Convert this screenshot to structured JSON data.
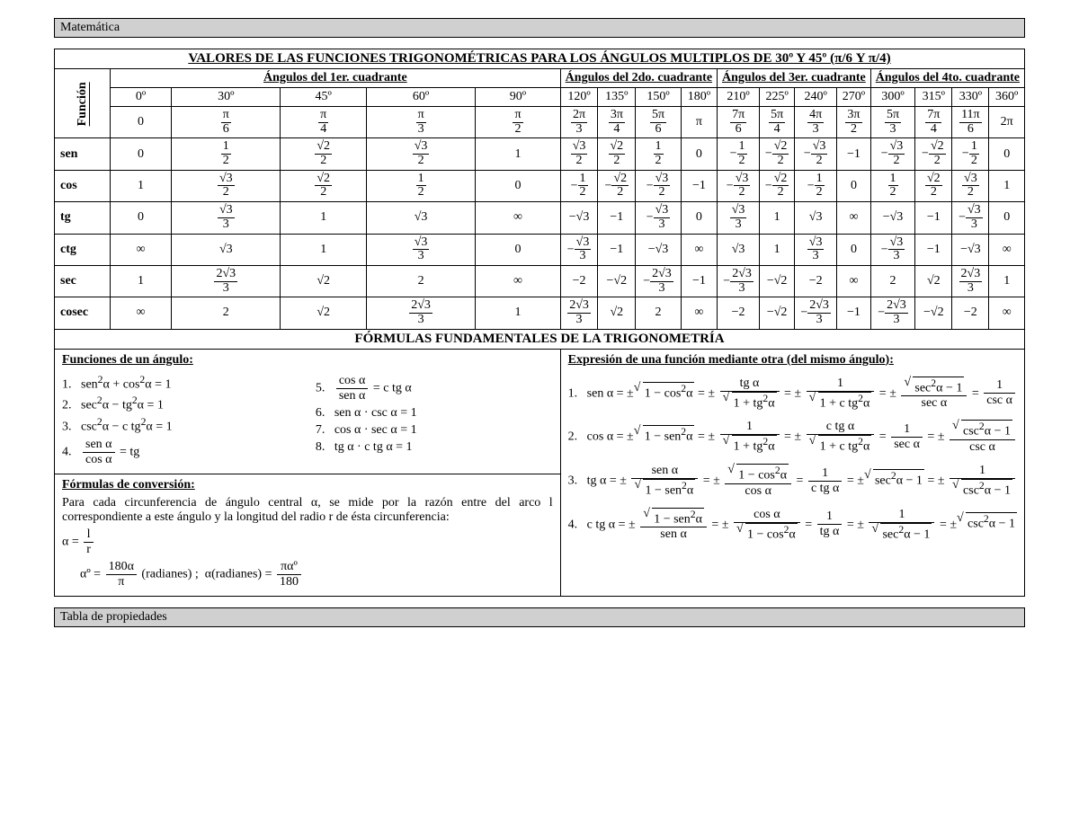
{
  "header": "Matemática",
  "footer": "Tabla de propiedades",
  "table_title": "VALORES DE LAS FUNCIONES TRIGONOMÉTRICAS PARA LOS ÁNGULOS MULTIPLOS DE 30º Y 45º (π/6 Y π/4)",
  "funcion_label": "Función",
  "quadrants": [
    "Ángulos del 1er. cuadrante",
    "Ángulos del 2do. cuadrante",
    "Ángulos del 3er. cuadrante",
    "Ángulos del 4to. cuadrante"
  ],
  "degrees": [
    "0º",
    "30º",
    "45º",
    "60º",
    "90º",
    "120º",
    "135º",
    "150º",
    "180º",
    "210º",
    "225º",
    "240º",
    "270º",
    "300º",
    "315º",
    "330º",
    "360º"
  ],
  "radians_html": [
    "0",
    "<span class='frac'><span class='num'>π</span><span class='den'>6</span></span>",
    "<span class='frac'><span class='num'>π</span><span class='den'>4</span></span>",
    "<span class='frac'><span class='num'>π</span><span class='den'>3</span></span>",
    "<span class='frac'><span class='num'>π</span><span class='den'>2</span></span>",
    "<span class='frac'><span class='num'>2π</span><span class='den'>3</span></span>",
    "<span class='frac'><span class='num'>3π</span><span class='den'>4</span></span>",
    "<span class='frac'><span class='num'>5π</span><span class='den'>6</span></span>",
    "π",
    "<span class='frac'><span class='num'>7π</span><span class='den'>6</span></span>",
    "<span class='frac'><span class='num'>5π</span><span class='den'>4</span></span>",
    "<span class='frac'><span class='num'>4π</span><span class='den'>3</span></span>",
    "<span class='frac'><span class='num'>3π</span><span class='den'>2</span></span>",
    "<span class='frac'><span class='num'>5π</span><span class='den'>3</span></span>",
    "<span class='frac'><span class='num'>7π</span><span class='den'>4</span></span>",
    "<span class='frac'><span class='num'>11π</span><span class='den'>6</span></span>",
    "2π"
  ],
  "rows": [
    {
      "name": "sen",
      "cells": [
        "0",
        "<span class='frac'><span class='num'>1</span><span class='den'>2</span></span>",
        "<span class='frac'><span class='num'>√2</span><span class='den'>2</span></span>",
        "<span class='frac'><span class='num'>√3</span><span class='den'>2</span></span>",
        "1",
        "<span class='frac'><span class='num'>√3</span><span class='den'>2</span></span>",
        "<span class='frac'><span class='num'>√2</span><span class='den'>2</span></span>",
        "<span class='frac'><span class='num'>1</span><span class='den'>2</span></span>",
        "0",
        "−<span class='frac'><span class='num'>1</span><span class='den'>2</span></span>",
        "−<span class='frac'><span class='num'>√2</span><span class='den'>2</span></span>",
        "−<span class='frac'><span class='num'>√3</span><span class='den'>2</span></span>",
        "−1",
        "−<span class='frac'><span class='num'>√3</span><span class='den'>2</span></span>",
        "−<span class='frac'><span class='num'>√2</span><span class='den'>2</span></span>",
        "−<span class='frac'><span class='num'>1</span><span class='den'>2</span></span>",
        "0"
      ]
    },
    {
      "name": "cos",
      "cells": [
        "1",
        "<span class='frac'><span class='num'>√3</span><span class='den'>2</span></span>",
        "<span class='frac'><span class='num'>√2</span><span class='den'>2</span></span>",
        "<span class='frac'><span class='num'>1</span><span class='den'>2</span></span>",
        "0",
        "−<span class='frac'><span class='num'>1</span><span class='den'>2</span></span>",
        "−<span class='frac'><span class='num'>√2</span><span class='den'>2</span></span>",
        "−<span class='frac'><span class='num'>√3</span><span class='den'>2</span></span>",
        "−1",
        "−<span class='frac'><span class='num'>√3</span><span class='den'>2</span></span>",
        "−<span class='frac'><span class='num'>√2</span><span class='den'>2</span></span>",
        "−<span class='frac'><span class='num'>1</span><span class='den'>2</span></span>",
        "0",
        "<span class='frac'><span class='num'>1</span><span class='den'>2</span></span>",
        "<span class='frac'><span class='num'>√2</span><span class='den'>2</span></span>",
        "<span class='frac'><span class='num'>√3</span><span class='den'>2</span></span>",
        "1"
      ]
    },
    {
      "name": "tg",
      "cells": [
        "0",
        "<span class='frac'><span class='num'>√3</span><span class='den'>3</span></span>",
        "1",
        "√3",
        "∞",
        "−√3",
        "−1",
        "−<span class='frac'><span class='num'>√3</span><span class='den'>3</span></span>",
        "0",
        "<span class='frac'><span class='num'>√3</span><span class='den'>3</span></span>",
        "1",
        "√3",
        "∞",
        "−√3",
        "−1",
        "−<span class='frac'><span class='num'>√3</span><span class='den'>3</span></span>",
        "0"
      ]
    },
    {
      "name": "ctg",
      "cells": [
        "∞",
        "√3",
        "1",
        "<span class='frac'><span class='num'>√3</span><span class='den'>3</span></span>",
        "0",
        "−<span class='frac'><span class='num'>√3</span><span class='den'>3</span></span>",
        "−1",
        "−√3",
        "∞",
        "√3",
        "1",
        "<span class='frac'><span class='num'>√3</span><span class='den'>3</span></span>",
        "0",
        "−<span class='frac'><span class='num'>√3</span><span class='den'>3</span></span>",
        "−1",
        "−√3",
        "∞"
      ]
    },
    {
      "name": "sec",
      "cells": [
        "1",
        "<span class='frac'><span class='num'>2√3</span><span class='den'>3</span></span>",
        "√2",
        "2",
        "∞",
        "−2",
        "−√2",
        "−<span class='frac'><span class='num'>2√3</span><span class='den'>3</span></span>",
        "−1",
        "−<span class='frac'><span class='num'>2√3</span><span class='den'>3</span></span>",
        "−√2",
        "−2",
        "∞",
        "2",
        "√2",
        "<span class='frac'><span class='num'>2√3</span><span class='den'>3</span></span>",
        "1"
      ]
    },
    {
      "name": "cosec",
      "cells": [
        "∞",
        "2",
        "√2",
        "<span class='frac'><span class='num'>2√3</span><span class='den'>3</span></span>",
        "1",
        "<span class='frac'><span class='num'>2√3</span><span class='den'>3</span></span>",
        "√2",
        "2",
        "∞",
        "−2",
        "−√2",
        "−<span class='frac'><span class='num'>2√3</span><span class='den'>3</span></span>",
        "−1",
        "−<span class='frac'><span class='num'>2√3</span><span class='den'>3</span></span>",
        "−√2",
        "−2",
        "∞"
      ]
    }
  ],
  "formulas_title": "FÓRMULAS FUNDAMENTALES DE LA TRIGONOMETRÍA",
  "left_top": {
    "heading": "Funciones de un ángulo:",
    "col1": [
      "1.&nbsp;&nbsp; sen<sup>2</sup>α + cos<sup>2</sup>α = 1",
      "2.&nbsp;&nbsp; sec<sup>2</sup>α − tg<sup>2</sup>α = 1",
      "3.&nbsp;&nbsp; csc<sup>2</sup>α − c tg<sup>2</sup>α = 1",
      "4.&nbsp;&nbsp; <span class='bigfrac'><span class='bnum'>sen α</span><span class='bden'>cos α</span></span> = tg"
    ],
    "col2": [
      "5.&nbsp;&nbsp; <span class='bigfrac'><span class='bnum'>cos α</span><span class='bden'>sen α</span></span> = c tg α",
      "6.&nbsp;&nbsp; sen α · csc α = 1",
      "7.&nbsp;&nbsp; cos α · sec α = 1",
      "8.&nbsp;&nbsp; tg α · c tg α = 1"
    ]
  },
  "left_bottom": {
    "heading": "Fórmulas de conversión:",
    "text": "Para cada circunferencia de ángulo central α, se mide por la razón entre del arco l correspondiente a este ángulo y la longitud del radio r de ésta circunferencia:",
    "eq1": "α = <span class='bigfrac'><span class='bnum'>l</span><span class='bden'>r</span></span>",
    "eq2": "αº = <span class='bigfrac'><span class='bnum'>180α</span><span class='bden'>π</span></span> (radianes) ;&nbsp; α(radianes) = <span class='bigfrac'><span class='bnum'>παº</span><span class='bden'>180</span></span>"
  },
  "right": {
    "heading": "Expresión de una función mediante otra (del mismo ángulo):",
    "eqs": [
      "1.&nbsp;&nbsp; sen α = ±<span class='sqrt'><span class='rad'>1 − cos<sup>2</sup>α</span></span> = ± <span class='bigfrac'><span class='bnum'>tg α</span><span class='bden'><span class='sqrt'><span class='rad'>1 + tg<sup>2</sup>α</span></span></span></span> = ± <span class='bigfrac'><span class='bnum'>1</span><span class='bden'><span class='sqrt'><span class='rad'>1 + c tg<sup>2</sup>α</span></span></span></span> = ± <span class='bigfrac'><span class='bnum'><span class='sqrt'><span class='rad'>sec<sup>2</sup>α − 1</span></span></span><span class='bden'>sec α</span></span> = <span class='bigfrac'><span class='bnum'>1</span><span class='bden'>csc α</span></span>",
      "2.&nbsp;&nbsp; cos α = ±<span class='sqrt'><span class='rad'>1 − sen<sup>2</sup>α</span></span> = ± <span class='bigfrac'><span class='bnum'>1</span><span class='bden'><span class='sqrt'><span class='rad'>1 + tg<sup>2</sup>α</span></span></span></span> = ± <span class='bigfrac'><span class='bnum'>c tg α</span><span class='bden'><span class='sqrt'><span class='rad'>1 + c tg<sup>2</sup>α</span></span></span></span> = <span class='bigfrac'><span class='bnum'>1</span><span class='bden'>sec α</span></span> = ± <span class='bigfrac'><span class='bnum'><span class='sqrt'><span class='rad'>csc<sup>2</sup>α − 1</span></span></span><span class='bden'>csc α</span></span>",
      "3.&nbsp;&nbsp; tg α = ± <span class='bigfrac'><span class='bnum'>sen α</span><span class='bden'><span class='sqrt'><span class='rad'>1 − sen<sup>2</sup>α</span></span></span></span> = ± <span class='bigfrac'><span class='bnum'><span class='sqrt'><span class='rad'>1 − cos<sup>2</sup>α</span></span></span><span class='bden'>cos α</span></span> = <span class='bigfrac'><span class='bnum'>1</span><span class='bden'>c tg α</span></span> = ±<span class='sqrt'><span class='rad'>sec<sup>2</sup>α − 1</span></span> = ± <span class='bigfrac'><span class='bnum'>1</span><span class='bden'><span class='sqrt'><span class='rad'>csc<sup>2</sup>α − 1</span></span></span></span>",
      "4.&nbsp;&nbsp; c tg α = ± <span class='bigfrac'><span class='bnum'><span class='sqrt'><span class='rad'>1 − sen<sup>2</sup>α</span></span></span><span class='bden'>sen α</span></span> = ± <span class='bigfrac'><span class='bnum'>cos α</span><span class='bden'><span class='sqrt'><span class='rad'>1 − cos<sup>2</sup>α</span></span></span></span> = <span class='bigfrac'><span class='bnum'>1</span><span class='bden'>tg α</span></span> = ± <span class='bigfrac'><span class='bnum'>1</span><span class='bden'><span class='sqrt'><span class='rad'>sec<sup>2</sup>α − 1</span></span></span></span> = ±<span class='sqrt'><span class='rad'>csc<sup>2</sup>α − 1</span></span>"
    ]
  },
  "colors": {
    "bg": "#ffffff",
    "header_bg": "#d0d0d0",
    "border": "#000000",
    "text": "#000000"
  },
  "fonts": {
    "family": "Times New Roman",
    "base_size_pt": 11
  }
}
